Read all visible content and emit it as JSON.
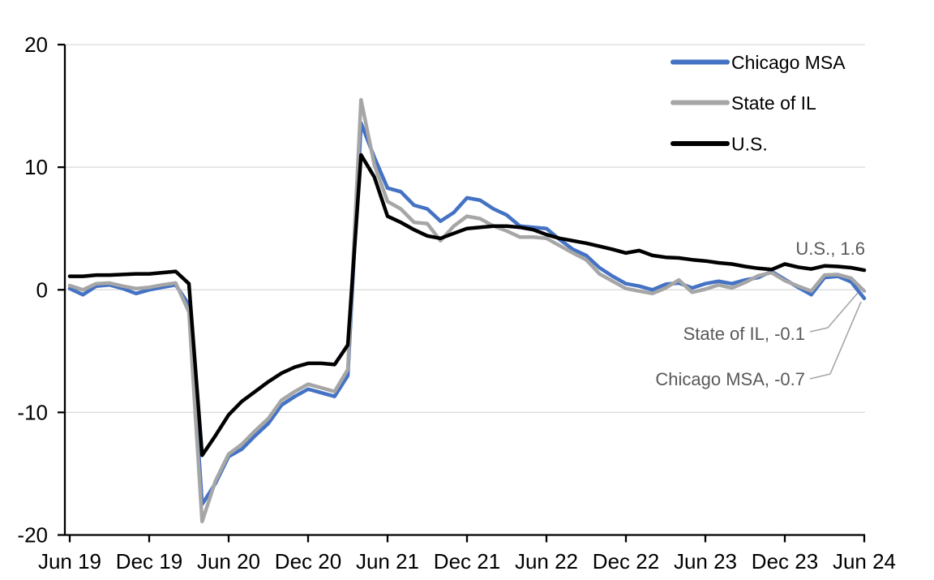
{
  "chart_data": {
    "type": "line",
    "title": "",
    "xlabel": "",
    "ylabel": "",
    "ylim": [
      -20,
      20
    ],
    "grid": "horizontal",
    "gridline_values": [
      20,
      10,
      0,
      -10
    ],
    "legend_position": "top-right-inside",
    "yticks": [
      "20",
      "10",
      "0",
      "-10",
      "-20"
    ],
    "ytick_values": [
      20,
      10,
      0,
      -10,
      -20
    ],
    "xticks": [
      "Jun 19",
      "Dec 19",
      "Jun 20",
      "Dec 20",
      "Jun 21",
      "Dec 21",
      "Jun 22",
      "Dec 22",
      "Jun 23",
      "Dec 23",
      "Jun 24"
    ],
    "x_monthly": [
      "Jun 19",
      "Jul 19",
      "Aug 19",
      "Sep 19",
      "Oct 19",
      "Nov 19",
      "Dec 19",
      "Jan 20",
      "Feb 20",
      "Mar 20",
      "Apr 20",
      "May 20",
      "Jun 20",
      "Jul 20",
      "Aug 20",
      "Sep 20",
      "Oct 20",
      "Nov 20",
      "Dec 20",
      "Jan 21",
      "Feb 21",
      "Mar 21",
      "Apr 21",
      "May 21",
      "Jun 21",
      "Jul 21",
      "Aug 21",
      "Sep 21",
      "Oct 21",
      "Nov 21",
      "Dec 21",
      "Jan 22",
      "Feb 22",
      "Mar 22",
      "Apr 22",
      "May 22",
      "Jun 22",
      "Jul 22",
      "Aug 22",
      "Sep 22",
      "Oct 22",
      "Nov 22",
      "Dec 22",
      "Jan 23",
      "Feb 23",
      "Mar 23",
      "Apr 23",
      "May 23",
      "Jun 23",
      "Jul 23",
      "Aug 23",
      "Sep 23",
      "Oct 23",
      "Nov 23",
      "Dec 23",
      "Jan 24",
      "Feb 24",
      "Mar 24",
      "Apr 24",
      "May 24",
      "Jun 24"
    ],
    "series": [
      {
        "name": "Chicago MSA",
        "color": "#4472C4",
        "end_value": -0.7,
        "end_label": "Chicago MSA, -0.7",
        "values": [
          0.1,
          -0.4,
          0.3,
          0.4,
          0.1,
          -0.3,
          0.0,
          0.2,
          0.4,
          -1.2,
          -17.5,
          -15.8,
          -13.6,
          -13.0,
          -11.9,
          -10.9,
          -9.4,
          -8.7,
          -8.1,
          -8.4,
          -8.7,
          -7.0,
          13.6,
          10.8,
          8.3,
          8.0,
          6.9,
          6.6,
          5.6,
          6.3,
          7.5,
          7.3,
          6.6,
          6.1,
          5.2,
          5.1,
          5.0,
          4.1,
          3.3,
          2.8,
          1.8,
          1.1,
          0.5,
          0.3,
          0.0,
          0.45,
          0.55,
          0.15,
          0.5,
          0.7,
          0.5,
          0.8,
          1.0,
          1.5,
          0.85,
          0.2,
          -0.4,
          1.0,
          1.1,
          0.65,
          -0.7
        ]
      },
      {
        "name": "State of IL",
        "color": "#A6A6A6",
        "end_value": -0.1,
        "end_label": "State of IL, -0.1",
        "values": [
          0.35,
          0.0,
          0.5,
          0.55,
          0.3,
          0.1,
          0.2,
          0.4,
          0.55,
          -1.8,
          -18.9,
          -15.6,
          -13.4,
          -12.6,
          -11.5,
          -10.5,
          -9.0,
          -8.3,
          -7.7,
          -8.0,
          -8.3,
          -6.5,
          15.5,
          10.2,
          7.2,
          6.6,
          5.5,
          5.4,
          4.0,
          5.2,
          6.0,
          5.8,
          5.2,
          4.8,
          4.3,
          4.3,
          4.2,
          3.6,
          3.0,
          2.45,
          1.3,
          0.7,
          0.1,
          -0.1,
          -0.3,
          0.15,
          0.8,
          -0.2,
          0.05,
          0.4,
          0.15,
          0.6,
          1.15,
          1.4,
          0.75,
          0.3,
          -0.1,
          1.2,
          1.25,
          0.95,
          -0.1
        ]
      },
      {
        "name": "U.S.",
        "color": "#000000",
        "end_value": 1.6,
        "end_label": "U.S., 1.6",
        "values": [
          1.1,
          1.1,
          1.2,
          1.2,
          1.25,
          1.3,
          1.3,
          1.4,
          1.5,
          0.5,
          -13.5,
          -11.9,
          -10.2,
          -9.1,
          -8.3,
          -7.5,
          -6.8,
          -6.3,
          -6.0,
          -6.0,
          -6.1,
          -4.5,
          11.0,
          9.2,
          6.0,
          5.5,
          4.9,
          4.4,
          4.2,
          4.6,
          5.0,
          5.1,
          5.2,
          5.2,
          5.1,
          4.9,
          4.5,
          4.2,
          4.0,
          3.8,
          3.55,
          3.3,
          3.0,
          3.2,
          2.8,
          2.65,
          2.6,
          2.45,
          2.35,
          2.2,
          2.1,
          1.9,
          1.75,
          1.65,
          2.1,
          1.85,
          1.7,
          1.95,
          1.9,
          1.8,
          1.6
        ]
      }
    ],
    "theme": {
      "background": "#FFFFFF",
      "gridline_color": "#D9D9D9",
      "axis_color": "#000000",
      "axis_label_color": "#000000",
      "end_label_color": "#595959",
      "leader_line_color": "#A6A6A6"
    }
  }
}
